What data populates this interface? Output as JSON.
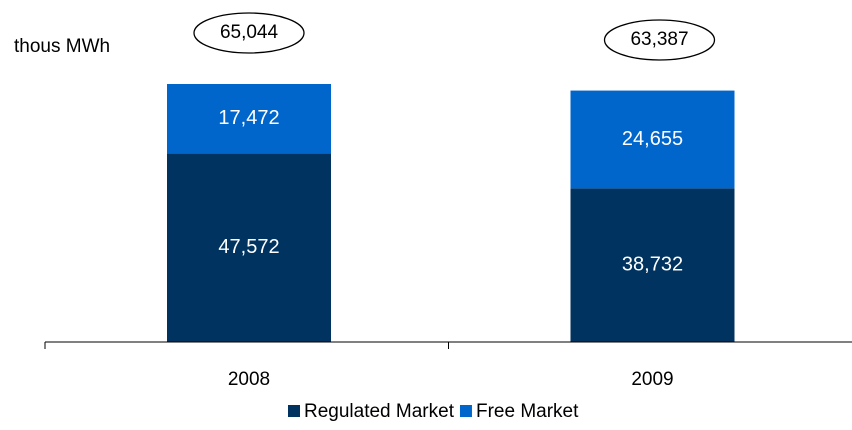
{
  "chart_data": {
    "type": "stacked_bar",
    "unit_label": "thous MWh",
    "categories": [
      "2008",
      "2009"
    ],
    "series": [
      {
        "name": "Regulated Market",
        "color": "#00335f",
        "values": [
          47572,
          38732
        ],
        "value_labels": [
          "47,572",
          "38,732"
        ]
      },
      {
        "name": "Free Market",
        "color": "#0066cc",
        "values": [
          17472,
          24655
        ],
        "value_labels": [
          "17,472",
          "24,655"
        ]
      }
    ],
    "totals": [
      65044,
      63387
    ],
    "total_value_labels": [
      "65,044",
      "63,387"
    ],
    "legend": "bottom"
  }
}
